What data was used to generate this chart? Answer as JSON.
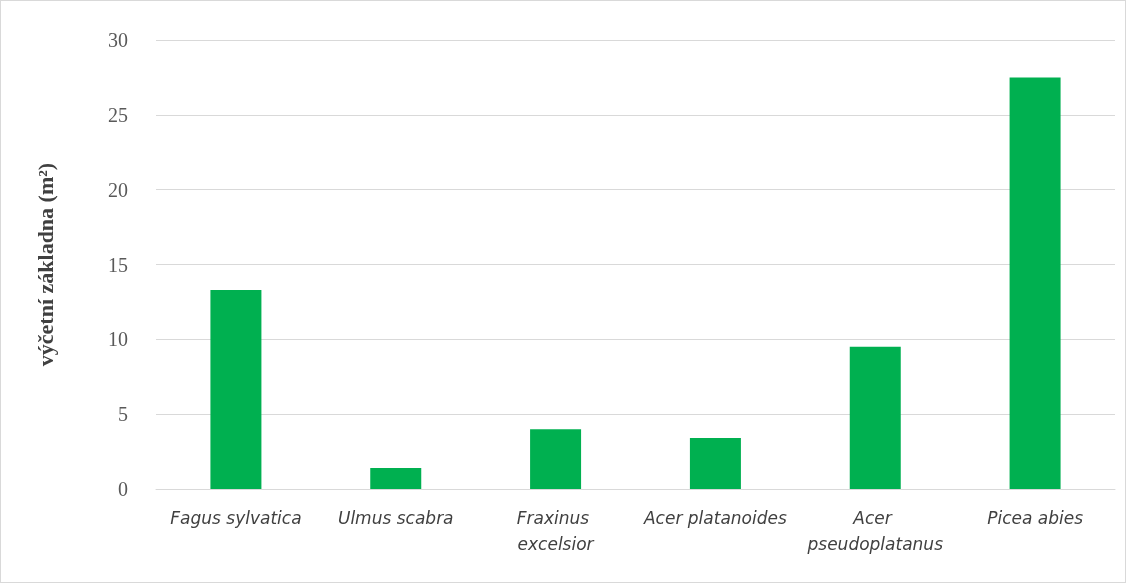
{
  "chart_data": {
    "type": "bar",
    "ylabel": "výčetní základna (m²)",
    "categories": [
      "Fagus sylvatica",
      "Ulmus scabra",
      "Fraxinus excelsior",
      "Acer platanoides",
      "Acer pseudoplatanus",
      "Picea abies"
    ],
    "values": [
      13.3,
      1.4,
      4.0,
      3.4,
      9.5,
      27.5
    ],
    "color": "#00b050",
    "ylim": [
      0,
      30
    ],
    "yticks": [
      0,
      5,
      10,
      15,
      20,
      25,
      30
    ],
    "grid": "y"
  }
}
